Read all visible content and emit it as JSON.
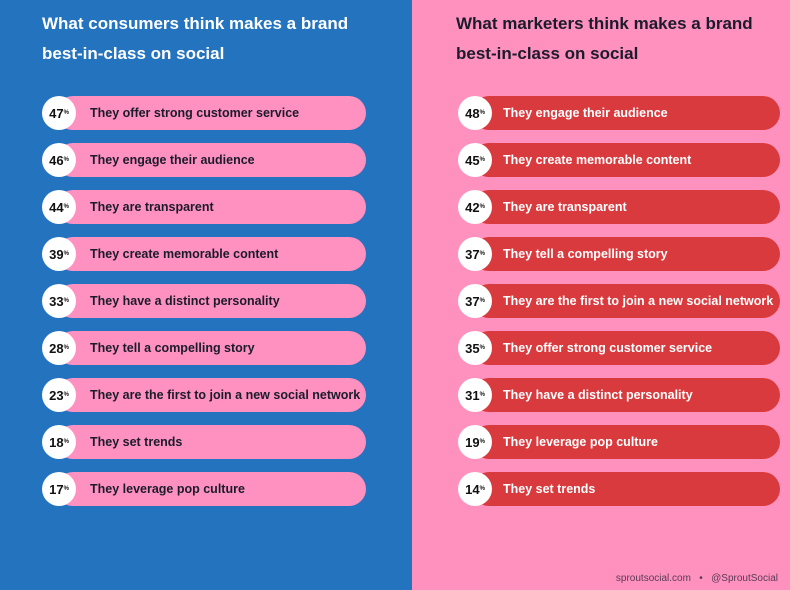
{
  "chart_data": [
    {
      "type": "table",
      "title": "What consumers think makes a brand best-in-class on social",
      "unit": "%",
      "categories": [
        "They offer strong customer service",
        "They engage their audience",
        "They are transparent",
        "They create memorable content",
        "They have a distinct personality",
        "They tell a compelling story",
        "They are the first to join a new social network",
        "They set trends",
        "They leverage pop culture"
      ],
      "values": [
        47,
        46,
        44,
        39,
        33,
        28,
        23,
        18,
        17
      ]
    },
    {
      "type": "table",
      "title": "What marketers think makes a brand best-in-class on social",
      "unit": "%",
      "categories": [
        "They engage their audience",
        "They create memorable content",
        "They are transparent",
        "They tell a compelling story",
        "They are the first to join a new social network",
        "They offer strong customer service",
        "They have a distinct personality",
        "They leverage pop culture",
        "They set trends"
      ],
      "values": [
        48,
        45,
        42,
        37,
        37,
        35,
        31,
        19,
        14
      ]
    }
  ],
  "colors": {
    "left_bg": "#2473bf",
    "right_bg": "#ff91bf",
    "consumer_bar": "#ff91c1",
    "marketer_bar": "#d93a3e"
  },
  "footer": {
    "site": "sproutsocial.com",
    "sep": "•",
    "handle": "@SproutSocial"
  }
}
